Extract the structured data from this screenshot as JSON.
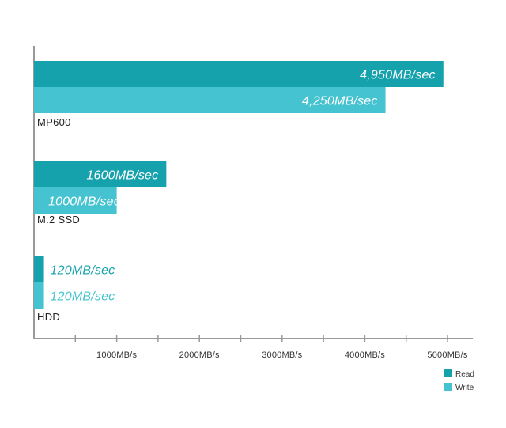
{
  "chart_data": {
    "type": "bar",
    "orientation": "horizontal",
    "categories": [
      "MP600",
      "M.2 SSD",
      "HDD"
    ],
    "series": [
      {
        "name": "Read",
        "color": "#16A2AD",
        "values": [
          4950,
          1600,
          120
        ],
        "labels": [
          "4,950MB/sec",
          "1600MB/sec",
          "120MB/sec"
        ]
      },
      {
        "name": "Write",
        "color": "#45C3D0",
        "values": [
          4250,
          1000,
          120
        ],
        "labels": [
          "4,250MB/sec",
          "1000MB/sec",
          "120MB/sec"
        ]
      }
    ],
    "xticks": [
      1000,
      2000,
      3000,
      4000,
      5000
    ],
    "xtick_labels": [
      "1000MB/s",
      "2000MB/s",
      "3000MB/s",
      "4000MB/s",
      "5000MB/s"
    ],
    "xlim": [
      0,
      5000
    ],
    "grid": false,
    "legend": "bottom-right",
    "axis_color": "#999999"
  }
}
